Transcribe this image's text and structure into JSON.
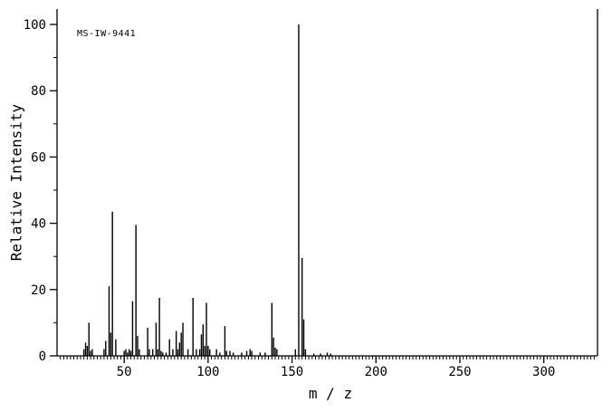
{
  "annotation_label": "MS-IW-9441",
  "colors": {
    "background": "#ffffff",
    "axis": "#000000",
    "bars": "#000000",
    "text": "#000000"
  },
  "chart_data": {
    "type": "bar",
    "title": "",
    "xlabel": "m / z",
    "ylabel": "Relative Intensity",
    "annotation": "MS-IW-9441",
    "xlim": [
      10,
      332
    ],
    "ylim": [
      0,
      100
    ],
    "x_major_ticks": [
      50,
      100,
      150,
      200,
      250,
      300
    ],
    "x_minor_step": 2,
    "y_major_ticks": [
      0,
      20,
      40,
      60,
      80,
      100
    ],
    "y_minor_step": 10,
    "grid": "off",
    "legend": "none",
    "series_name": "relative intensity vs m/z",
    "peaks": [
      [
        26,
        2
      ],
      [
        27,
        4
      ],
      [
        28,
        3
      ],
      [
        29,
        10
      ],
      [
        30,
        1.5
      ],
      [
        31,
        2
      ],
      [
        38,
        2
      ],
      [
        39,
        4.5
      ],
      [
        41,
        21
      ],
      [
        42,
        7
      ],
      [
        43,
        43.5
      ],
      [
        45,
        5
      ],
      [
        50,
        1.5
      ],
      [
        51,
        2
      ],
      [
        52,
        1
      ],
      [
        53,
        2
      ],
      [
        54,
        1.5
      ],
      [
        55,
        16.5
      ],
      [
        57,
        39.5
      ],
      [
        58,
        6
      ],
      [
        59,
        2
      ],
      [
        64,
        8.5
      ],
      [
        65,
        2
      ],
      [
        67,
        2
      ],
      [
        69,
        10
      ],
      [
        70,
        2
      ],
      [
        71,
        17.5
      ],
      [
        72,
        1.5
      ],
      [
        73,
        1
      ],
      [
        75,
        1
      ],
      [
        77,
        5
      ],
      [
        79,
        2
      ],
      [
        81,
        7.5
      ],
      [
        82,
        2
      ],
      [
        83,
        4
      ],
      [
        84,
        7
      ],
      [
        85,
        10
      ],
      [
        88,
        2
      ],
      [
        91,
        17.5
      ],
      [
        93,
        2
      ],
      [
        95,
        2
      ],
      [
        96,
        6.5
      ],
      [
        97,
        9.5
      ],
      [
        98,
        3
      ],
      [
        99,
        16
      ],
      [
        100,
        3
      ],
      [
        101,
        2
      ],
      [
        105,
        2
      ],
      [
        107,
        1
      ],
      [
        110,
        9
      ],
      [
        111,
        1.5
      ],
      [
        113,
        1.5
      ],
      [
        115,
        1
      ],
      [
        120,
        1
      ],
      [
        123,
        1.5
      ],
      [
        125,
        2
      ],
      [
        126,
        1.5
      ],
      [
        131,
        1
      ],
      [
        134,
        1
      ],
      [
        138,
        16
      ],
      [
        139,
        5.5
      ],
      [
        140,
        2.5
      ],
      [
        141,
        2
      ],
      [
        152,
        2
      ],
      [
        154,
        100
      ],
      [
        156,
        29.5
      ],
      [
        157,
        11
      ],
      [
        158,
        2
      ],
      [
        163,
        0.7
      ],
      [
        167,
        0.7
      ],
      [
        171,
        1
      ],
      [
        173,
        0.7
      ]
    ]
  }
}
